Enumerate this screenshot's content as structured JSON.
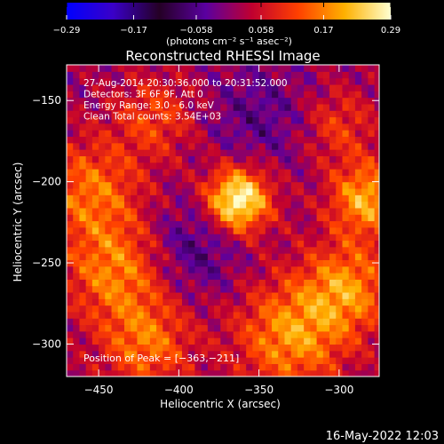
{
  "chart_data": {
    "type": "heatmap",
    "title": "Reconstructed RHESSI Image",
    "xlabel": "Heliocentric X (arcsec)",
    "ylabel": "Heliocentric Y (arcsec)",
    "xlim": [
      -470,
      -275
    ],
    "ylim": [
      -320,
      -128
    ],
    "x_ticks": [
      -450,
      -400,
      -350,
      -300
    ],
    "y_ticks": [
      -150,
      -200,
      -250,
      -300
    ],
    "x_tick_labels": [
      "−450",
      "−400",
      "−350",
      "−300"
    ],
    "y_tick_labels": [
      "−150",
      "−200",
      "−250",
      "−300"
    ],
    "colorbar": {
      "range": [
        -0.29,
        0.29
      ],
      "ticks": [
        -0.29,
        -0.17,
        -0.058,
        0.058,
        0.17,
        0.29
      ],
      "tick_labels": [
        "−0.29",
        "−0.17",
        "−0.058",
        "0.058",
        "0.17",
        "0.29"
      ],
      "unit_label": "(photons cm⁻² s⁻¹ asec⁻²)",
      "colors": [
        "#0000ff",
        "#3a00c8",
        "#250025",
        "#5a00a0",
        "#c00030",
        "#ff4000",
        "#ffb000",
        "#ffffd0"
      ]
    },
    "annotations": [
      "27-Aug-2014 20:30:36.000 to 20:31:52.000",
      "Detectors: 3F 6F 9F, Att 0",
      "Energy Range: 3.0 - 6.0 keV",
      "Clean     Total counts: 3.54E+03"
    ],
    "peak_label": "Position of Peak = [−363,−211]",
    "peak": [
      -363,
      -211
    ],
    "sources": [
      {
        "x": -363,
        "y": -211,
        "amp": 0.29,
        "sigma": 14
      },
      {
        "x": -283,
        "y": -210,
        "amp": 0.19,
        "sigma": 16
      },
      {
        "x": -455,
        "y": -205,
        "amp": 0.14,
        "sigma": 22
      },
      {
        "x": -440,
        "y": -255,
        "amp": 0.15,
        "sigma": 22
      },
      {
        "x": -420,
        "y": -300,
        "amp": 0.14,
        "sigma": 20
      },
      {
        "x": -330,
        "y": -295,
        "amp": 0.17,
        "sigma": 24
      },
      {
        "x": -295,
        "y": -265,
        "amp": 0.16,
        "sigma": 20
      },
      {
        "x": -415,
        "y": -160,
        "amp": 0.1,
        "sigma": 18
      },
      {
        "x": -300,
        "y": -165,
        "amp": 0.09,
        "sigma": 16
      },
      {
        "x": -390,
        "y": -240,
        "amp": -0.08,
        "sigma": 20
      },
      {
        "x": -350,
        "y": -160,
        "amp": -0.06,
        "sigma": 22
      }
    ]
  },
  "footer_date": "16-May-2022 12:03"
}
